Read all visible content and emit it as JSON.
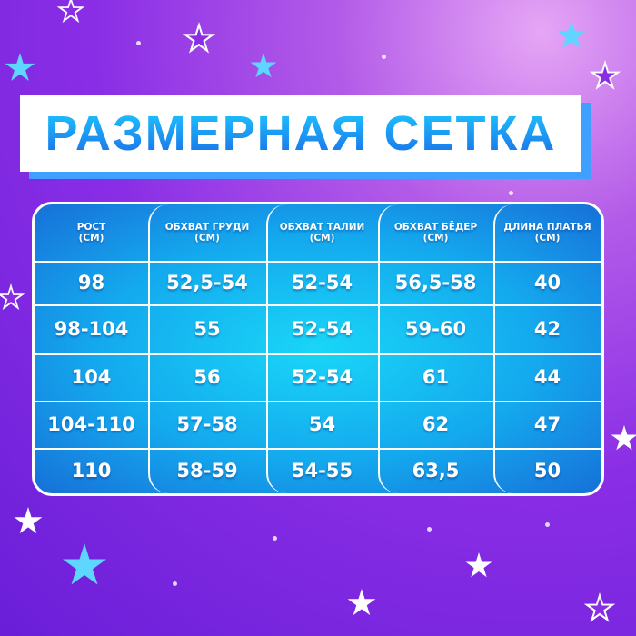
{
  "title": "РАЗМЕРНАЯ СЕТКА",
  "colors": {
    "background": "#8a2ee6",
    "title": "#1a8ef0",
    "table": "#14a9ee",
    "banner_shadow": "#3fa0ff"
  },
  "table": {
    "headers": [
      [
        "РОСТ",
        "(СМ)"
      ],
      [
        "ОБХВАТ ГРУДИ",
        "(СМ)"
      ],
      [
        "ОБХВАТ ТАЛИИ",
        "(СМ)"
      ],
      [
        "ОБХВАТ БЁДЕР",
        "(СМ)"
      ],
      [
        "ДЛИНА ПЛАТЬЯ",
        "(СМ)"
      ]
    ],
    "rows": [
      [
        "98",
        "52,5-54",
        "52-54",
        "56,5-58",
        "40"
      ],
      [
        "98-104",
        "55",
        "52-54",
        "59-60",
        "42"
      ],
      [
        "104",
        "56",
        "52-54",
        "61",
        "44"
      ],
      [
        "104-110",
        "57-58",
        "54",
        "62",
        "47"
      ],
      [
        "110",
        "58-59",
        "54-55",
        "63,5",
        "50"
      ]
    ]
  }
}
